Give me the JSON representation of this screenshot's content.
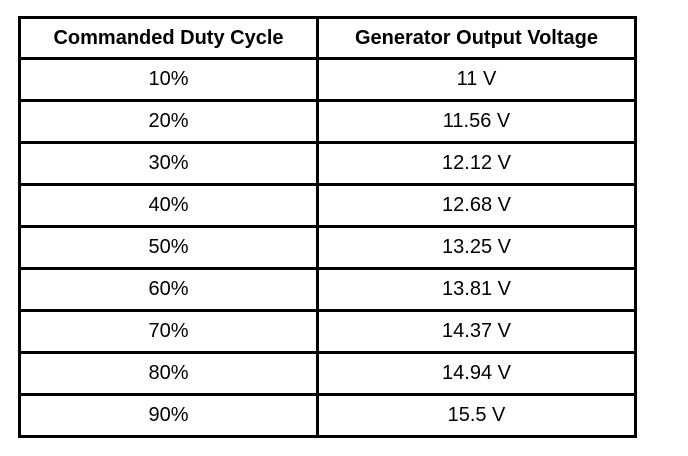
{
  "table": {
    "headers": [
      "Commanded Duty Cycle",
      "Generator Output Voltage"
    ],
    "rows": [
      [
        "10%",
        "11 V"
      ],
      [
        "20%",
        "11.56 V"
      ],
      [
        "30%",
        "12.12 V"
      ],
      [
        "40%",
        "12.68 V"
      ],
      [
        "50%",
        "13.25 V"
      ],
      [
        "60%",
        "13.81 V"
      ],
      [
        "70%",
        "14.37 V"
      ],
      [
        "80%",
        "14.94 V"
      ],
      [
        "90%",
        "15.5 V"
      ]
    ]
  }
}
